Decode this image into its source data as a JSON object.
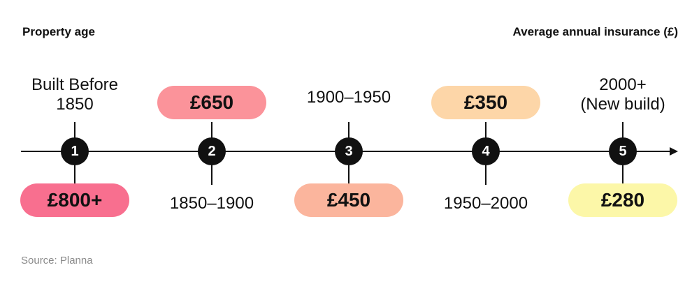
{
  "header": {
    "left_title": "Property age",
    "right_title": "Average annual insurance (£)"
  },
  "timeline": [
    {
      "number": "1",
      "age_label": "Built Before\n1850",
      "price": "£800+",
      "color": "#f86f8f"
    },
    {
      "number": "2",
      "age_label": "1850–1900",
      "price": "£650",
      "color": "#fb939a"
    },
    {
      "number": "3",
      "age_label": "1900–1950",
      "price": "£450",
      "color": "#fbb59d"
    },
    {
      "number": "4",
      "age_label": "1950–2000",
      "price": "£350",
      "color": "#fdd6a8"
    },
    {
      "number": "5",
      "age_label": "2000+\n(New build)",
      "price": "£280",
      "color": "#fcf7a8"
    }
  ],
  "source": "Source: Planna"
}
